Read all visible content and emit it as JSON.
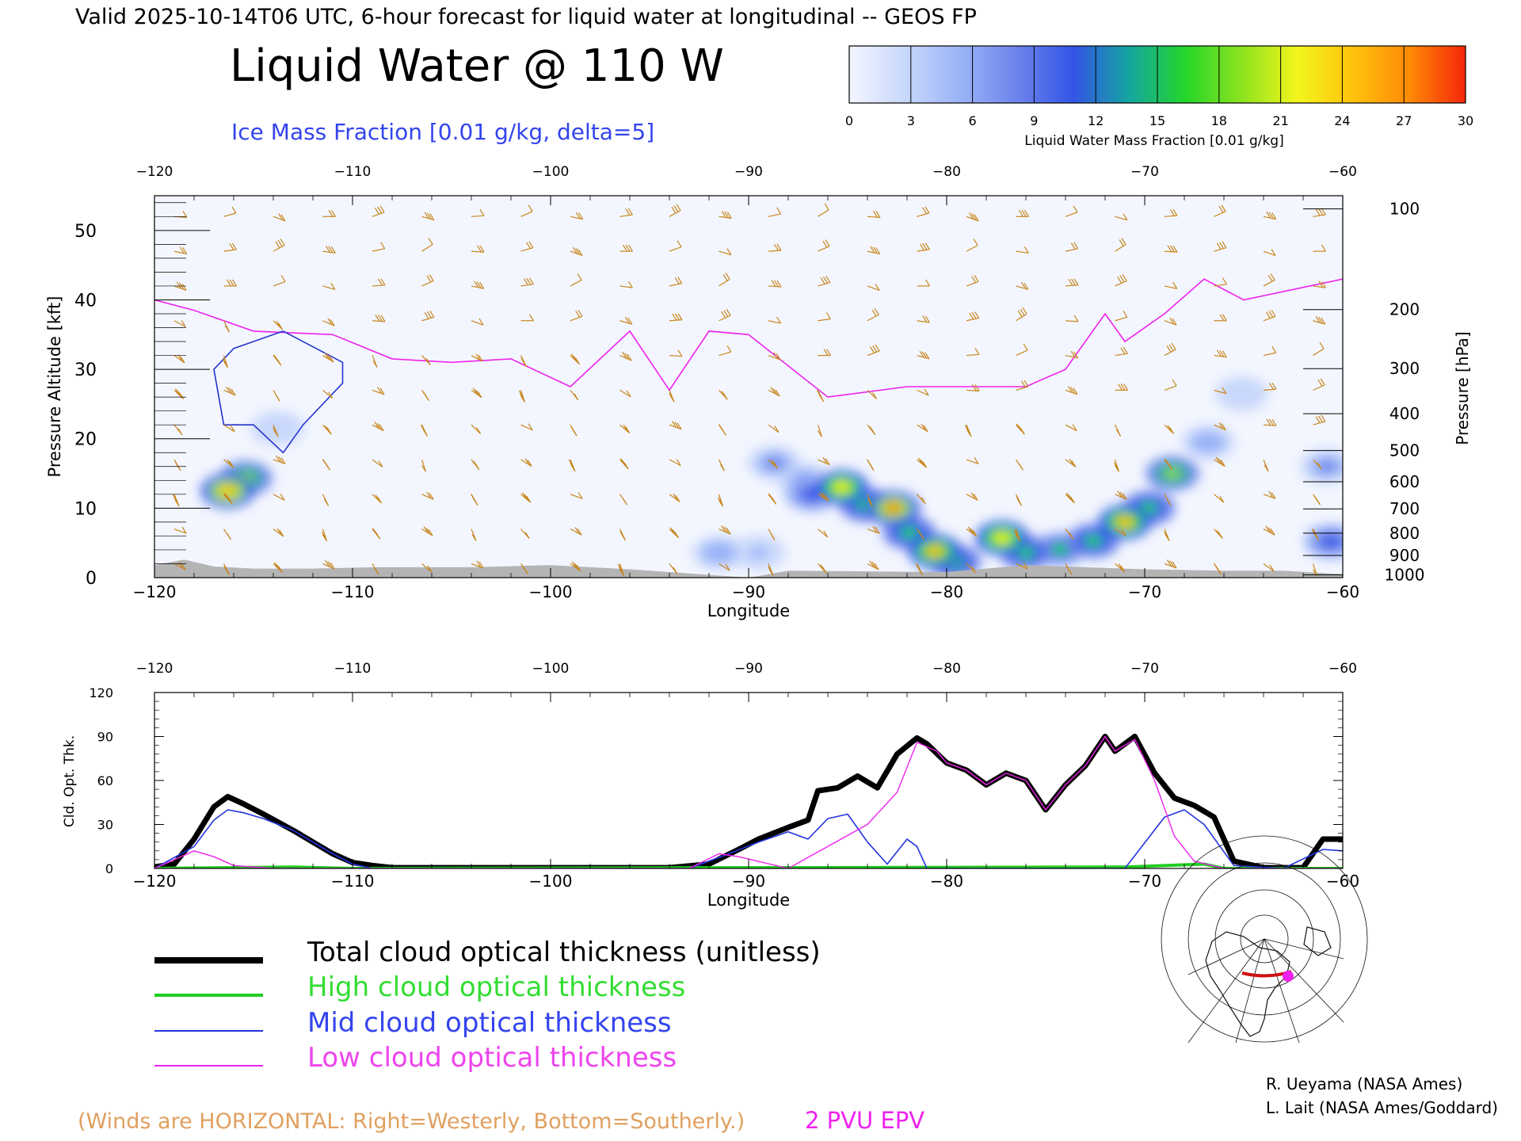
{
  "header": {
    "valid_line": "Valid 2025-10-14T06 UTC, 6-hour forecast for liquid water at longitudinal -- GEOS FP",
    "title": "Liquid Water @ 110 W",
    "ice_subtitle": "Ice Mass Fraction [0.01 g/kg, delta=5]"
  },
  "colorbar": {
    "ticks": [
      "0",
      "3",
      "6",
      "9",
      "12",
      "15",
      "18",
      "21",
      "24",
      "27",
      "30"
    ],
    "label": "Liquid Water Mass Fraction [0.01 g/kg]",
    "colors": [
      "#f3f6fe",
      "#c8d7fb",
      "#9ab3f7",
      "#6c84ec",
      "#3354e6",
      "#14a6a0",
      "#24d62a",
      "#8ce31f",
      "#f3f51c",
      "#ffc20c",
      "#ff8a06",
      "#f5260a"
    ]
  },
  "footer": {
    "winds_note": "(Winds are HORIZONTAL: Right=Westerly, Bottom=Southerly.)",
    "epv_label": "2 PVU EPV",
    "credit1": "R. Ueyama (NASA Ames)",
    "credit2": "L. Lait (NASA Ames/Goddard)"
  },
  "colors": {
    "wind": "#c8861e",
    "epv": "#ee22ee",
    "ice": "#2233cc",
    "terrain": "#b4b4b4",
    "total": "#000000",
    "high": "#22cc22",
    "mid": "#2233dd",
    "low": "#ee22ee"
  },
  "chart_data": [
    {
      "type": "heatmap",
      "title": "Liquid Water @ 110 W",
      "xlabel": "Longitude",
      "ylabel": "Pressure Altitude [kft]",
      "y2label": "Pressure [hPa]",
      "xlim": [
        -120,
        -60
      ],
      "ylim": [
        0,
        55
      ],
      "x_ticks": [
        "-120",
        "-110",
        "-100",
        "-90",
        "-80",
        "-70",
        "-60"
      ],
      "y_ticks": [
        "0",
        "10",
        "20",
        "30",
        "40",
        "50"
      ],
      "pressure_ticks": [
        "100",
        "200",
        "300",
        "400",
        "500",
        "600",
        "700",
        "800",
        "900",
        "1000"
      ],
      "pressure_tick_altitudes_kft": [
        53.1,
        38.6,
        30.1,
        23.6,
        18.3,
        13.8,
        9.9,
        6.4,
        3.2,
        0.4
      ],
      "liquid_water_blobs": [
        {
          "lon": -116.3,
          "alt": 12.5,
          "value": 25
        },
        {
          "lon": -115.4,
          "alt": 14.3,
          "value": 18
        },
        {
          "lon": -85.3,
          "alt": 13.0,
          "value": 23
        },
        {
          "lon": -86.8,
          "alt": 12.0,
          "value": 10
        },
        {
          "lon": -84.1,
          "alt": 10.5,
          "value": 16
        },
        {
          "lon": -82.7,
          "alt": 10.0,
          "value": 27
        },
        {
          "lon": -81.9,
          "alt": 6.5,
          "value": 16
        },
        {
          "lon": -80.6,
          "alt": 3.8,
          "value": 24
        },
        {
          "lon": -79.6,
          "alt": 2.3,
          "value": 17
        },
        {
          "lon": -77.2,
          "alt": 5.7,
          "value": 23
        },
        {
          "lon": -76.0,
          "alt": 3.6,
          "value": 16
        },
        {
          "lon": -74.3,
          "alt": 4.1,
          "value": 15
        },
        {
          "lon": -72.6,
          "alt": 5.3,
          "value": 16
        },
        {
          "lon": -71.0,
          "alt": 8.0,
          "value": 24
        },
        {
          "lon": -69.8,
          "alt": 10.0,
          "value": 16
        },
        {
          "lon": -68.6,
          "alt": 15.0,
          "value": 20
        },
        {
          "lon": -66.8,
          "alt": 19.5,
          "value": 6
        },
        {
          "lon": -65.1,
          "alt": 26.5,
          "value": 3
        },
        {
          "lon": -88.7,
          "alt": 16.5,
          "value": 8
        },
        {
          "lon": -87.2,
          "alt": 14.0,
          "value": 7
        },
        {
          "lon": -91.5,
          "alt": 3.6,
          "value": 6
        },
        {
          "lon": -89.5,
          "alt": 3.6,
          "value": 5
        },
        {
          "lon": -60.8,
          "alt": 16.0,
          "value": 9
        },
        {
          "lon": -60.6,
          "alt": 5.2,
          "value": 10
        },
        {
          "lon": -113.8,
          "alt": 21.5,
          "value": 3
        }
      ],
      "epv_2pvu_line": [
        [
          -120,
          40.0
        ],
        [
          -118,
          38.5
        ],
        [
          -115,
          35.5
        ],
        [
          -111,
          35.0
        ],
        [
          -108,
          31.5
        ],
        [
          -105,
          31.0
        ],
        [
          -102,
          31.5
        ],
        [
          -99,
          27.5
        ],
        [
          -96,
          35.5
        ],
        [
          -94,
          27.0
        ],
        [
          -92,
          35.5
        ],
        [
          -90,
          35.0
        ],
        [
          -88,
          30.5
        ],
        [
          -86,
          26.0
        ],
        [
          -82,
          27.5
        ],
        [
          -76,
          27.5
        ],
        [
          -74,
          30.0
        ],
        [
          -72,
          38.0
        ],
        [
          -71,
          34.0
        ],
        [
          -69,
          38.0
        ],
        [
          -67,
          43.0
        ],
        [
          -65,
          40.0
        ],
        [
          -60,
          43.0
        ]
      ],
      "ice_contour_main": [
        [
          -113.5,
          35.5
        ],
        [
          -110.5,
          31.0
        ],
        [
          -110.5,
          28.0
        ],
        [
          -112.5,
          22.0
        ],
        [
          -113.5,
          18.0
        ],
        [
          -115.0,
          22.0
        ],
        [
          -116.5,
          22.0
        ],
        [
          -117.0,
          30.0
        ],
        [
          -116.0,
          33.0
        ],
        [
          -113.5,
          35.5
        ]
      ],
      "terrain_surface_kft": [
        [
          -120,
          1.8
        ],
        [
          -118.5,
          2.6
        ],
        [
          -117,
          1.6
        ],
        [
          -115,
          1.3
        ],
        [
          -112,
          1.3
        ],
        [
          -109,
          1.5
        ],
        [
          -104,
          1.5
        ],
        [
          -100,
          1.8
        ],
        [
          -96,
          1.2
        ],
        [
          -90,
          0.0
        ],
        [
          -88,
          1.0
        ],
        [
          -80,
          0.8
        ],
        [
          -76,
          1.8
        ],
        [
          -72,
          1.4
        ],
        [
          -70,
          1.2
        ],
        [
          -66,
          1.0
        ],
        [
          -63,
          1.0
        ],
        [
          -60,
          0.5
        ]
      ]
    },
    {
      "type": "line",
      "xlabel": "Longitude",
      "ylabel": "Cld. Opt. Thk.",
      "xlim": [
        -120,
        -60
      ],
      "ylim": [
        0,
        120
      ],
      "x_ticks": [
        "-120",
        "-110",
        "-100",
        "-90",
        "-80",
        "-70",
        "-60"
      ],
      "y_ticks": [
        "0",
        "30",
        "60",
        "90",
        "120"
      ],
      "series": [
        {
          "name": "Total cloud optical thickness (unitless)",
          "points": [
            [
              -120,
              1
            ],
            [
              -119,
              3
            ],
            [
              -118,
              20
            ],
            [
              -117,
              42
            ],
            [
              -116.3,
              49
            ],
            [
              -115.5,
              44
            ],
            [
              -114.5,
              37
            ],
            [
              -113,
              26
            ],
            [
              -112,
              18
            ],
            [
              -111,
              10
            ],
            [
              -110,
              4
            ],
            [
              -109,
              2
            ],
            [
              -108,
              0.5
            ],
            [
              -100,
              0.5
            ],
            [
              -94,
              0.5
            ],
            [
              -92,
              3
            ],
            [
              -90.5,
              13
            ],
            [
              -89.5,
              20
            ],
            [
              -88,
              28
            ],
            [
              -87,
              33
            ],
            [
              -86.5,
              53
            ],
            [
              -85.5,
              55
            ],
            [
              -84.5,
              63
            ],
            [
              -83.5,
              55
            ],
            [
              -82.5,
              78
            ],
            [
              -81.5,
              89
            ],
            [
              -81,
              85
            ],
            [
              -80,
              72
            ],
            [
              -79,
              67
            ],
            [
              -78,
              57
            ],
            [
              -77,
              65
            ],
            [
              -76,
              60
            ],
            [
              -75,
              40
            ],
            [
              -74,
              57
            ],
            [
              -73,
              70
            ],
            [
              -72,
              90
            ],
            [
              -71.5,
              80
            ],
            [
              -70.5,
              90
            ],
            [
              -69.5,
              65
            ],
            [
              -68.5,
              48
            ],
            [
              -67.5,
              43
            ],
            [
              -66.5,
              35
            ],
            [
              -65.5,
              5
            ],
            [
              -64,
              0.5
            ],
            [
              -62,
              0.5
            ],
            [
              -61,
              20
            ],
            [
              -60,
              20
            ]
          ]
        },
        {
          "name": "High cloud optical thickness",
          "points": [
            [
              -120,
              0
            ],
            [
              -113,
              1
            ],
            [
              -110,
              0
            ],
            [
              -71,
              1
            ],
            [
              -67,
              3
            ],
            [
              -66,
              0
            ],
            [
              -60,
              0
            ]
          ]
        },
        {
          "name": "Mid cloud optical thickness",
          "points": [
            [
              -120,
              0
            ],
            [
              -118,
              15
            ],
            [
              -117,
              33
            ],
            [
              -116.3,
              40
            ],
            [
              -115.5,
              38
            ],
            [
              -114.5,
              34
            ],
            [
              -113,
              26
            ],
            [
              -112,
              18
            ],
            [
              -111,
              10
            ],
            [
              -110,
              3
            ],
            [
              -109,
              0
            ],
            [
              -100,
              0
            ],
            [
              -93,
              0
            ],
            [
              -91,
              10
            ],
            [
              -89.5,
              18
            ],
            [
              -88,
              25
            ],
            [
              -87,
              20
            ],
            [
              -86,
              34
            ],
            [
              -85,
              37
            ],
            [
              -84,
              18
            ],
            [
              -83,
              3
            ],
            [
              -82,
              20
            ],
            [
              -81.5,
              15
            ],
            [
              -81,
              0
            ],
            [
              -71,
              0
            ],
            [
              -69,
              35
            ],
            [
              -68,
              40
            ],
            [
              -67,
              30
            ],
            [
              -65.5,
              2
            ],
            [
              -63,
              0
            ],
            [
              -61,
              13
            ],
            [
              -60,
              12
            ]
          ]
        },
        {
          "name": "Low cloud optical thickness",
          "points": [
            [
              -120,
              0
            ],
            [
              -118,
              12
            ],
            [
              -117,
              8
            ],
            [
              -116,
              2
            ],
            [
              -114,
              0
            ],
            [
              -93,
              0
            ],
            [
              -91.5,
              10
            ],
            [
              -90.5,
              8
            ],
            [
              -88,
              0
            ],
            [
              -84,
              30
            ],
            [
              -82.5,
              52
            ],
            [
              -81.5,
              86
            ],
            [
              -80.5,
              80
            ],
            [
              -80,
              72
            ],
            [
              -79,
              67
            ],
            [
              -78,
              57
            ],
            [
              -77,
              65
            ],
            [
              -76,
              60
            ],
            [
              -75,
              40
            ],
            [
              -74,
              57
            ],
            [
              -73,
              70
            ],
            [
              -72,
              90
            ],
            [
              -71.5,
              80
            ],
            [
              -70.5,
              88
            ],
            [
              -69.5,
              60
            ],
            [
              -68.5,
              22
            ],
            [
              -67.5,
              5
            ],
            [
              -66,
              0
            ],
            [
              -60,
              0
            ]
          ]
        }
      ]
    }
  ]
}
